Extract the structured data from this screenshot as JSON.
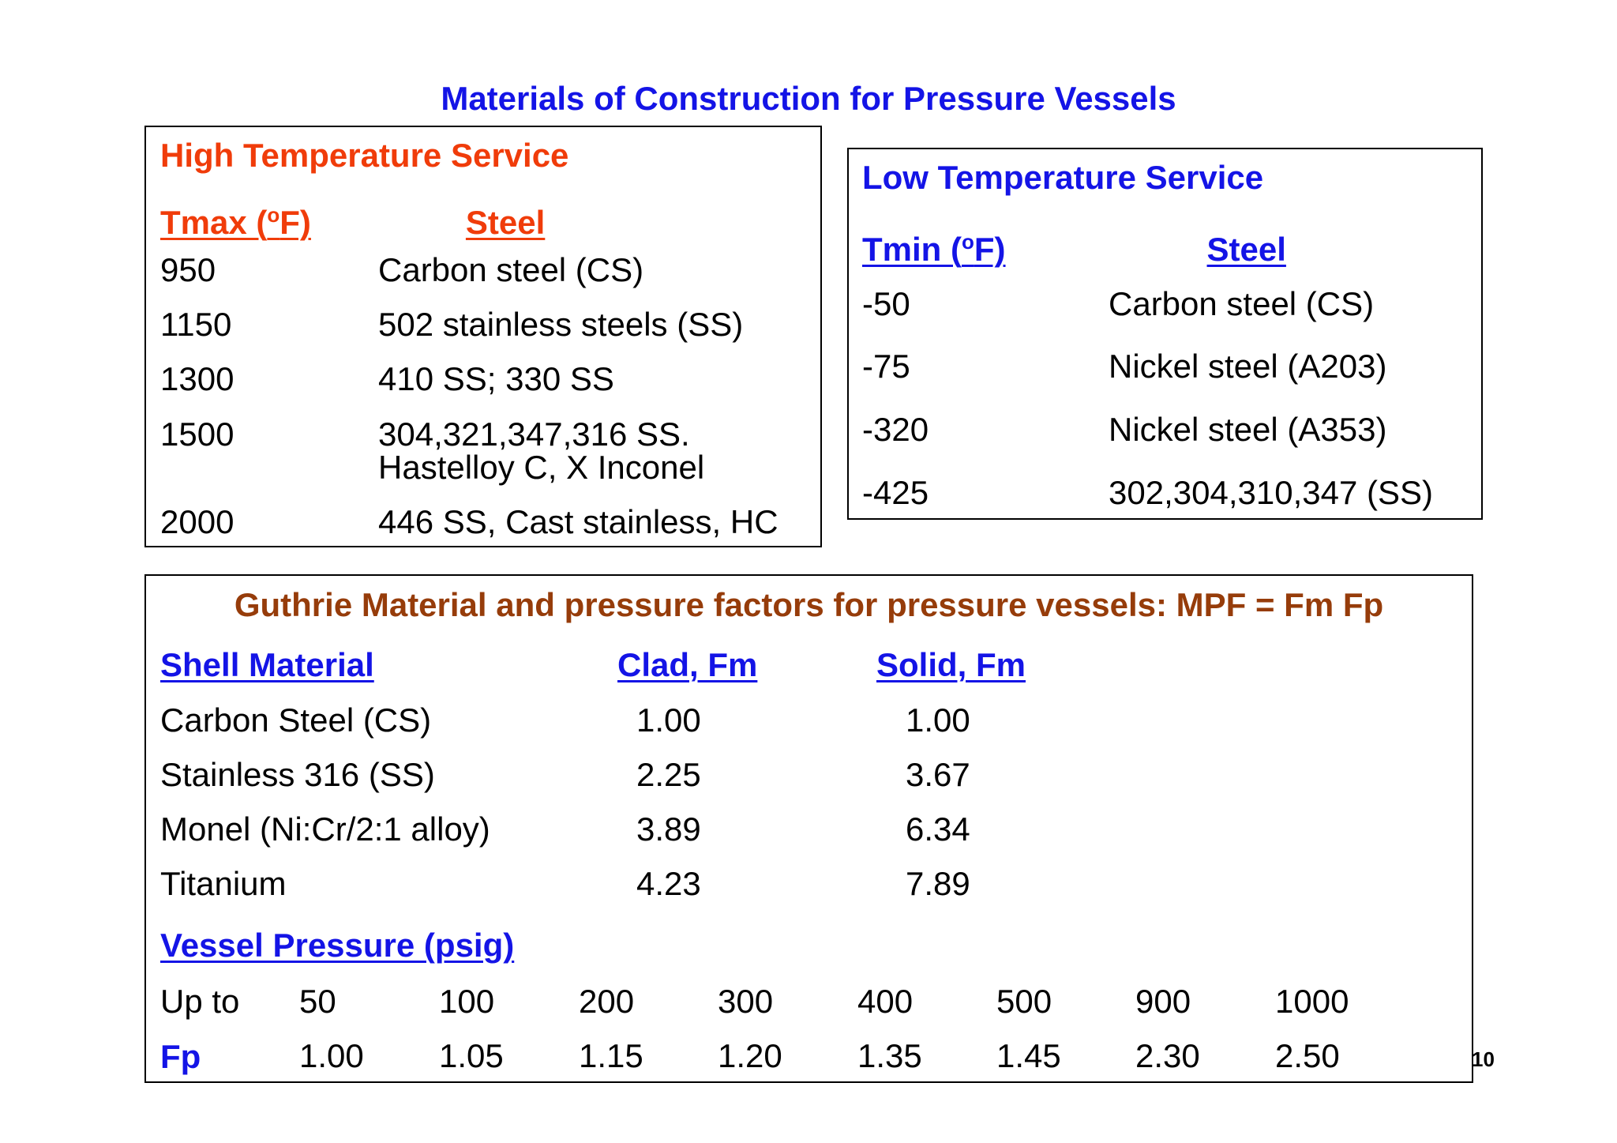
{
  "title": "Materials of Construction for Pressure Vessels",
  "colors": {
    "title": "#1414e6",
    "high_temp": "#f03c0a",
    "low_temp": "#1414e6",
    "guthrie_title": "#963c0a",
    "guthrie_headers": "#1414e6"
  },
  "high_temp": {
    "title": "High Temperature Service",
    "col_tmax": "Tmax (",
    "col_tmax_sup": "o",
    "col_tmax_end": "F)",
    "col_steel": "Steel",
    "rows": [
      {
        "t": "950",
        "steel": "Carbon steel (CS)"
      },
      {
        "t": "1150",
        "steel": "502 stainless steels (SS)"
      },
      {
        "t": "1300",
        "steel": "410 SS; 330 SS"
      },
      {
        "t": "1500",
        "steel": "304,321,347,316 SS.",
        "steel2": "Hastelloy C, X Inconel"
      },
      {
        "t": "2000",
        "steel": "446 SS, Cast stainless, HC"
      }
    ]
  },
  "low_temp": {
    "title": "Low Temperature Service",
    "col_tmin": "Tmin (",
    "col_tmin_sup": "o",
    "col_tmin_end": "F)",
    "col_steel": "Steel",
    "rows": [
      {
        "t": "-50",
        "steel": "Carbon steel (CS)"
      },
      {
        "t": "-75",
        "steel": "Nickel steel (A203)"
      },
      {
        "t": "-320",
        "steel": "Nickel steel (A353)"
      },
      {
        "t": "-425",
        "steel": "302,304,310,347 (SS)"
      }
    ]
  },
  "guthrie": {
    "title": "Guthrie Material and pressure factors for pressure vessels: MPF = Fm Fp",
    "col_shell": "Shell Material",
    "col_clad": "Clad, Fm",
    "col_solid": "Solid, Fm",
    "rows": [
      {
        "material": "Carbon Steel (CS)",
        "clad": "1.00",
        "solid": "1.00"
      },
      {
        "material": "Stainless 316 (SS)",
        "clad": "2.25",
        "solid": "3.67"
      },
      {
        "material": "Monel (Ni:Cr/2:1 alloy)",
        "clad": "3.89",
        "solid": "6.34"
      },
      {
        "material": "Titanium",
        "clad": "4.23",
        "solid": "7.89"
      }
    ],
    "pressure_title": "Vessel Pressure (psig)",
    "upto_label": "Up to",
    "pressures": [
      "50",
      "100",
      "200",
      "300",
      "400",
      "500",
      "900",
      "1000"
    ],
    "fp_label": "Fp",
    "fp_values": [
      "1.00",
      "1.05",
      "1.15",
      "1.20",
      "1.35",
      "1.45",
      "2.30",
      "2.50"
    ]
  },
  "page_number": "10"
}
